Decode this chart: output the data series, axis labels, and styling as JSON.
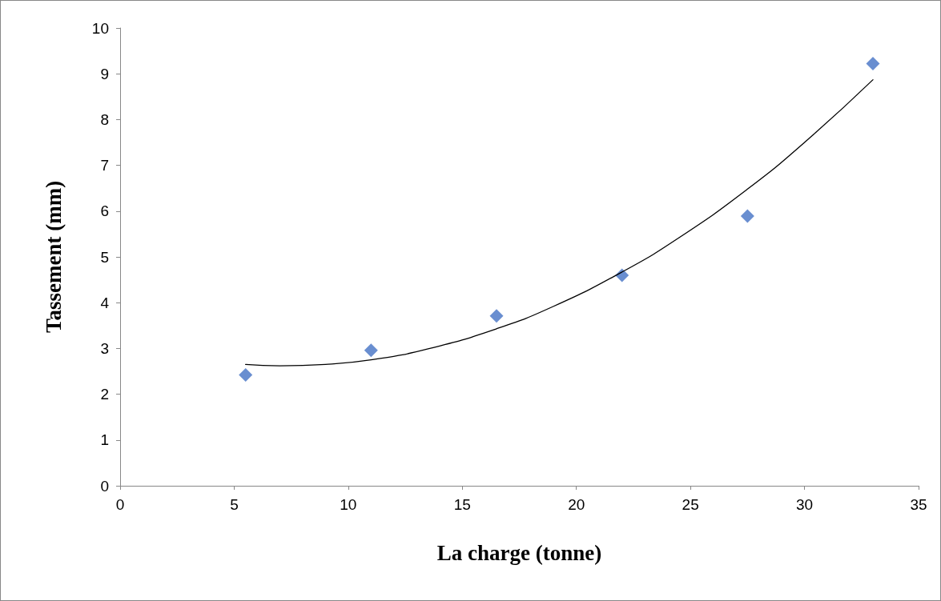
{
  "chart_data": {
    "type": "scatter",
    "xlabel": "La charge (tonne)",
    "ylabel": "Tassement (mm)",
    "xlim": [
      0,
      35
    ],
    "xticks": [
      0,
      5,
      10,
      15,
      20,
      25,
      30,
      35
    ],
    "ylim": [
      0,
      10
    ],
    "yticks": [
      0,
      1,
      2,
      3,
      4,
      5,
      6,
      7,
      8,
      9,
      10
    ],
    "grid": false,
    "marker": "diamond",
    "series": [
      {
        "color": "#4472c4",
        "x": [
          5.5,
          11,
          16.5,
          22,
          27.5,
          33
        ],
        "values": [
          2.42,
          2.96,
          3.71,
          4.6,
          5.89,
          9.22
        ]
      },
      {
        "type": "line",
        "color": "#000000",
        "marker": "none",
        "line_style": "solid",
        "x": [
          5.5,
          7,
          9,
          11,
          13.5,
          16.5,
          19,
          22,
          24.5,
          27.5,
          30,
          33
        ],
        "values": [
          2.65,
          2.62,
          2.65,
          2.75,
          2.99,
          3.43,
          3.92,
          4.67,
          5.42,
          6.48,
          7.5,
          8.87
        ]
      }
    ]
  }
}
